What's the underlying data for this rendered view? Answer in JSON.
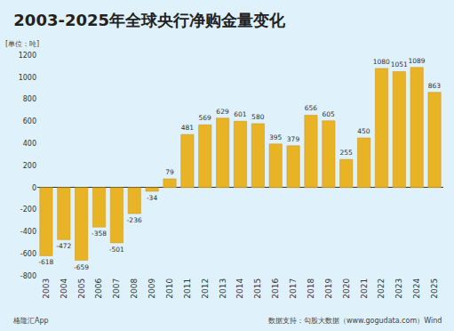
{
  "chart_data": {
    "type": "bar",
    "title": "2003-2025年全球央行净购金量变化",
    "ylabel": "[单位：吨]",
    "annotations": [
      "数据支持：勾股大数据（www.gogudata.com）Wind",
      "格隆汇App"
    ],
    "categories": [
      "2003",
      "2004",
      "2005",
      "2006",
      "2007",
      "2008",
      "2009",
      "2010",
      "2011",
      "2012",
      "2013",
      "2014",
      "2015",
      "2016",
      "2017",
      "2018",
      "2019",
      "2020",
      "2021",
      "2022",
      "2023",
      "2024",
      "2025"
    ],
    "values": [
      -618,
      -472,
      -659,
      -358,
      -501,
      -236,
      -34,
      79,
      481,
      569,
      629,
      601,
      580,
      395,
      379,
      656,
      605,
      255,
      450,
      1080,
      1051,
      1089,
      863
    ],
    "color": "#e8b425",
    "ylim": [
      -800,
      1200
    ],
    "yticks": [
      -800,
      -600,
      -400,
      -200,
      0,
      200,
      400,
      600,
      800,
      1000,
      1200
    ],
    "grid": false,
    "data_labels": true
  }
}
